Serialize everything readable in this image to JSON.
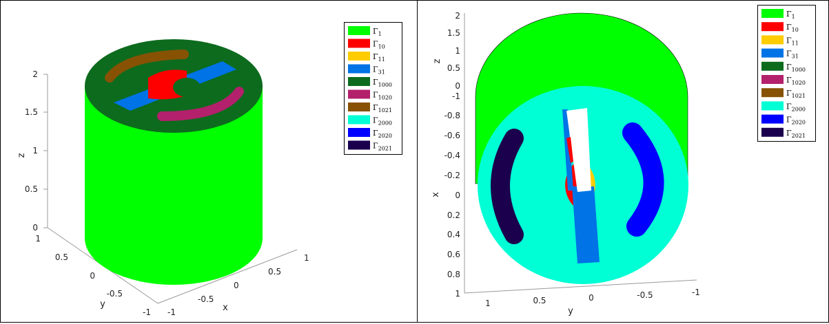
{
  "colors": {
    "g1": "#00ff00",
    "g10": "#ff0000",
    "g11": "#ffcc00",
    "g31": "#0073e6",
    "g1000": "#0d6b1e",
    "g1020": "#b3206b",
    "g1021": "#875204",
    "g2000": "#00ffd5",
    "g2020": "#0000ff",
    "g2021": "#1b004d"
  },
  "legend": [
    {
      "base": "Γ",
      "sub": "1",
      "color": "#00ff00"
    },
    {
      "base": "Γ",
      "sub": "10",
      "color": "#ff0000"
    },
    {
      "base": "Γ",
      "sub": "11",
      "color": "#ffcc00"
    },
    {
      "base": "Γ",
      "sub": "31",
      "color": "#0073e6"
    },
    {
      "base": "Γ",
      "sub": "1000",
      "color": "#0d6b1e"
    },
    {
      "base": "Γ",
      "sub": "1020",
      "color": "#b3206b"
    },
    {
      "base": "Γ",
      "sub": "1021",
      "color": "#875204"
    },
    {
      "base": "Γ",
      "sub": "2000",
      "color": "#00ffd5"
    },
    {
      "base": "Γ",
      "sub": "2020",
      "color": "#0000ff"
    },
    {
      "base": "Γ",
      "sub": "2021",
      "color": "#1b004d"
    }
  ],
  "left_view": {
    "z_label": "z",
    "y_label": "y",
    "x_label": "x",
    "z_ticks": [
      "0",
      "0.5",
      "1",
      "1.5",
      "2"
    ],
    "y_ticks": [
      "1",
      "0.5",
      "0",
      "-0.5",
      "-1"
    ],
    "x_ticks": [
      "-1",
      "-0.5",
      "0",
      "0.5",
      "1"
    ]
  },
  "right_view": {
    "z_label": "z",
    "x_label": "x",
    "y_label": "y",
    "z_ticks": [
      "2",
      "1.5",
      "1",
      "0.5",
      "0"
    ],
    "x_ticks": [
      "-1",
      "-0.8",
      "-0.6",
      "-0.4",
      "-0.2",
      "0",
      "0.2",
      "0.4",
      "0.6",
      "0.8",
      "1"
    ],
    "y_ticks": [
      "1",
      "0.5",
      "0",
      "-0.5",
      "-1"
    ]
  }
}
